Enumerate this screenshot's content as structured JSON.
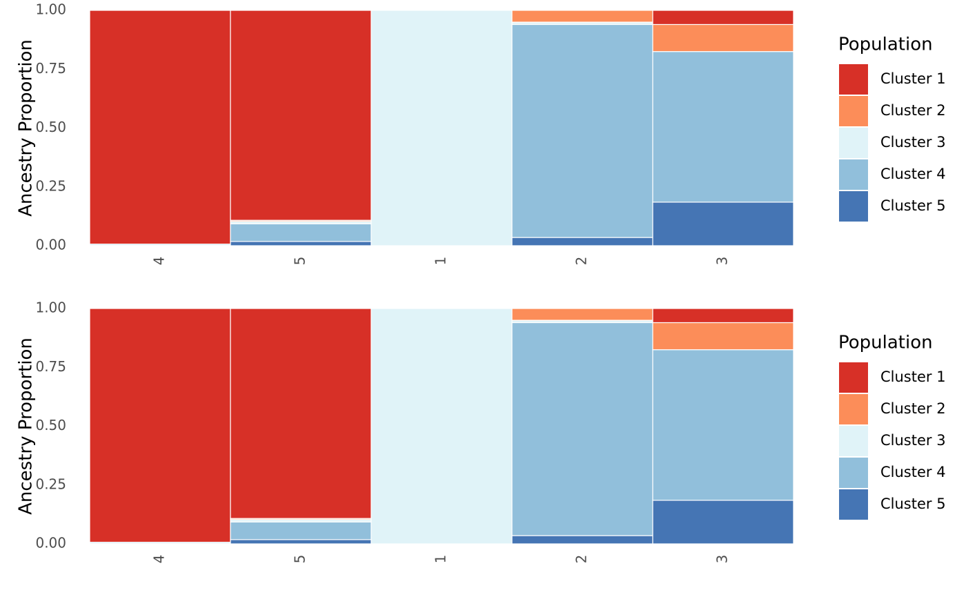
{
  "colors": {
    "Cluster 1": "#d73027",
    "Cluster 2": "#fc8d59",
    "Cluster 3": "#e0f3f8",
    "Cluster 4": "#91bfdb",
    "Cluster 5": "#4575b4"
  },
  "chart_data": [
    {
      "type": "bar",
      "stacked": true,
      "categories": [
        "4",
        "5",
        "1",
        "2",
        "3"
      ],
      "ylabel": "Ancestry Proportion",
      "ylim": [
        0,
        1
      ],
      "yticks": [
        "0.00",
        "0.25",
        "0.50",
        "0.75",
        "1.00"
      ],
      "legend": {
        "title": "Population",
        "position": "right"
      },
      "series": [
        {
          "name": "Cluster 5",
          "values": [
            0.002,
            0.018,
            0.0,
            0.035,
            0.185
          ]
        },
        {
          "name": "Cluster 4",
          "values": [
            0.005,
            0.075,
            0.0,
            0.905,
            0.64
          ]
        },
        {
          "name": "Cluster 3",
          "values": [
            0.0,
            0.01,
            1.0,
            0.01,
            0.0
          ]
        },
        {
          "name": "Cluster 2",
          "values": [
            0.0,
            0.005,
            0.0,
            0.05,
            0.115
          ]
        },
        {
          "name": "Cluster 1",
          "values": [
            0.993,
            0.892,
            0.0,
            0.0,
            0.06
          ]
        }
      ]
    },
    {
      "type": "bar",
      "stacked": true,
      "categories": [
        "4",
        "5",
        "1",
        "2",
        "3"
      ],
      "ylabel": "Ancestry Proportion",
      "ylim": [
        0,
        1
      ],
      "yticks": [
        "0.00",
        "0.25",
        "0.50",
        "0.75",
        "1.00"
      ],
      "legend": {
        "title": "Population",
        "position": "right"
      },
      "series": [
        {
          "name": "Cluster 5",
          "values": [
            0.002,
            0.018,
            0.0,
            0.035,
            0.185
          ]
        },
        {
          "name": "Cluster 4",
          "values": [
            0.005,
            0.075,
            0.0,
            0.905,
            0.64
          ]
        },
        {
          "name": "Cluster 3",
          "values": [
            0.0,
            0.01,
            1.0,
            0.01,
            0.0
          ]
        },
        {
          "name": "Cluster 2",
          "values": [
            0.0,
            0.005,
            0.0,
            0.05,
            0.115
          ]
        },
        {
          "name": "Cluster 1",
          "values": [
            0.993,
            0.892,
            0.0,
            0.0,
            0.06
          ]
        }
      ]
    }
  ]
}
